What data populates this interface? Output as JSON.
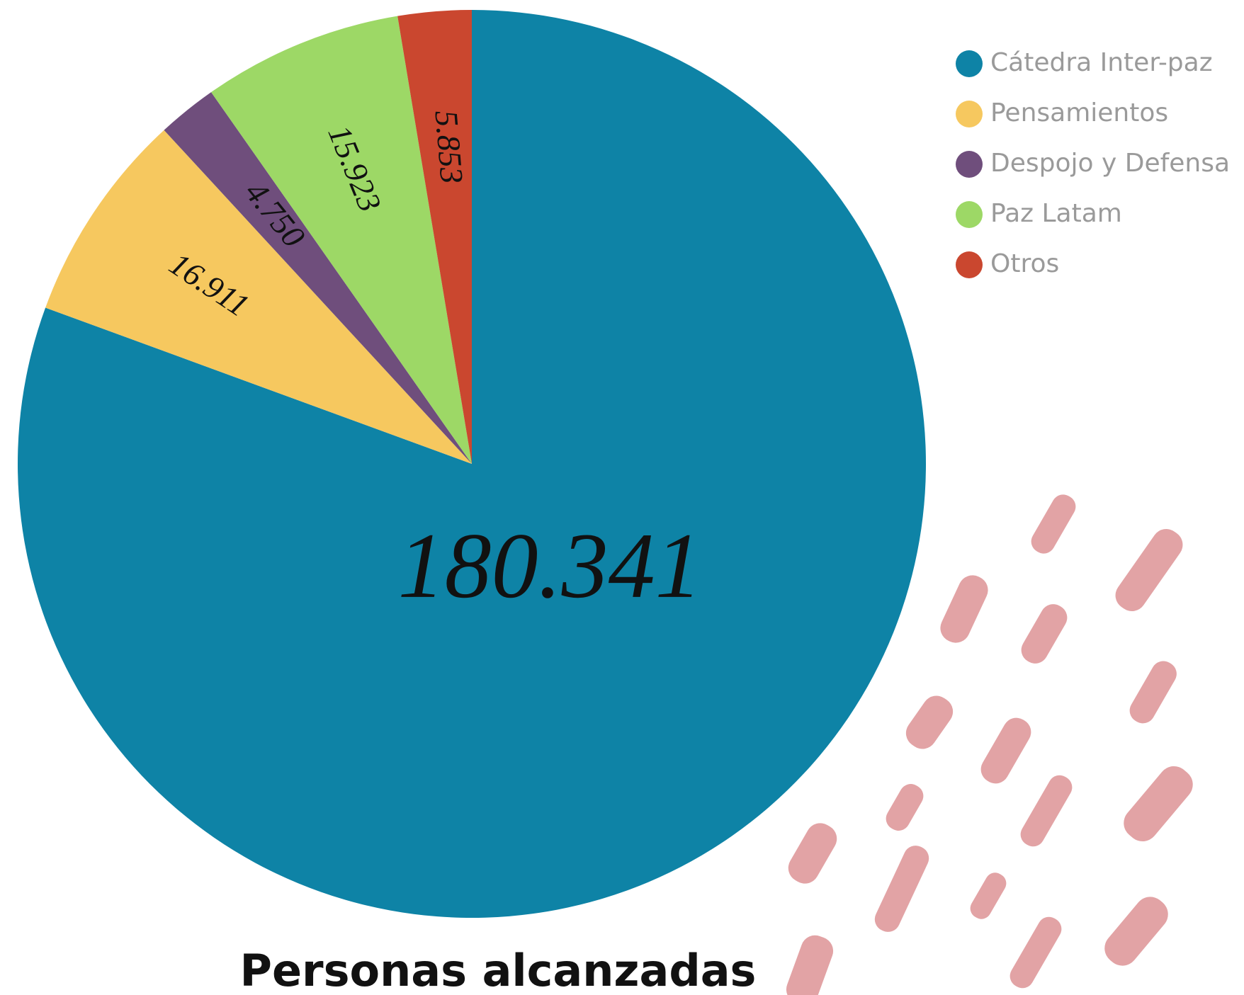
{
  "chart_data": {
    "type": "pie",
    "title": "Personas alcanzadas",
    "categories": [
      "Cátedra Inter-paz",
      "Pensamientos",
      "Despojo y Defensa",
      "Paz Latam",
      "Otros"
    ],
    "values": [
      180341,
      16911,
      4750,
      15923,
      5853
    ],
    "value_labels": [
      "180.341",
      "16.911",
      "4.750",
      "15.923",
      "5.853"
    ],
    "colors": [
      "#0e83a6",
      "#f6c85f",
      "#6f4e7c",
      "#9dd866",
      "#ca472f"
    ],
    "legend": "top-right"
  }
}
